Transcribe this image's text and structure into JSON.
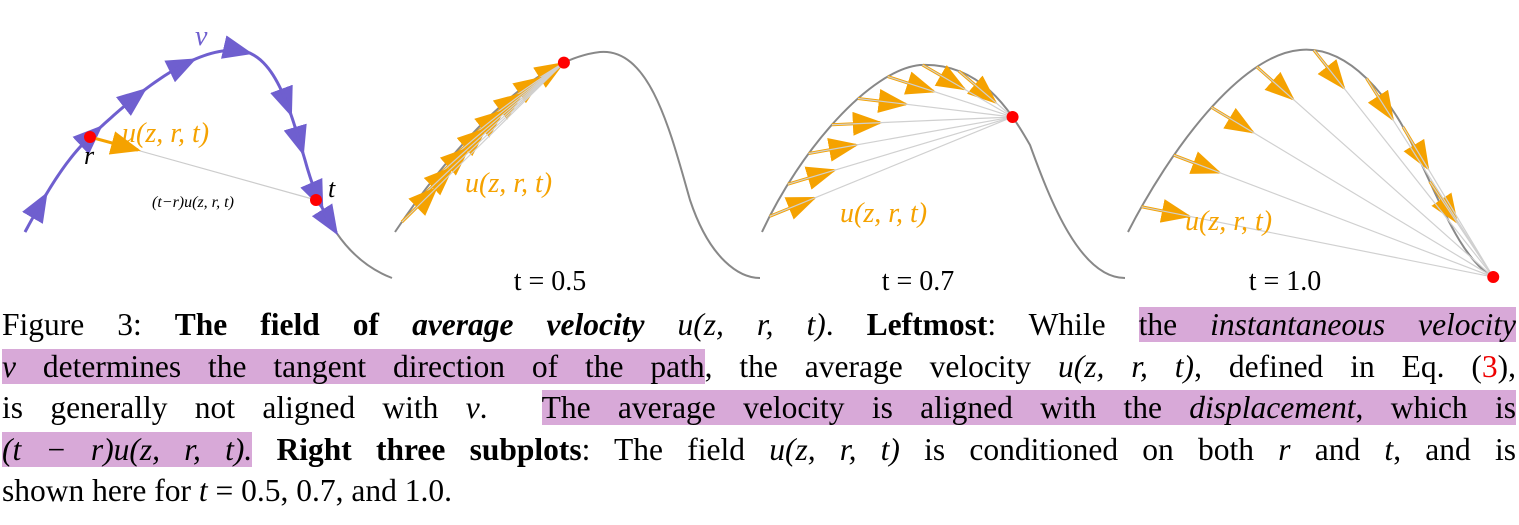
{
  "left_panel": {
    "velocity_label": "v",
    "field_label": "u(z, r, t)",
    "start_label": "r",
    "end_label": "t",
    "displacement_label": "(t−r)u(z, r, t)"
  },
  "subplots": [
    {
      "field_label": "u(z, r, t)",
      "title": "t = 0.5"
    },
    {
      "field_label": "u(z, r, t)",
      "title": "t = 0.7"
    },
    {
      "field_label": "u(z, r, t)",
      "title": "t = 1.0"
    }
  ],
  "caption": {
    "lines": [
      [
        {
          "text": "Figure 3: ",
          "style": ""
        },
        {
          "text": "The field of ",
          "style": "bold"
        },
        {
          "text": "average velocity",
          "style": "bold italic"
        },
        {
          "text": " ",
          "style": ""
        },
        {
          "text": "u(z, r, t)",
          "style": "italic"
        },
        {
          "text": ". ",
          "style": ""
        },
        {
          "text": "Leftmost",
          "style": "bold"
        },
        {
          "text": ": While ",
          "style": ""
        },
        {
          "text": "the ",
          "style": "highlight"
        },
        {
          "text": "instantaneous velocity",
          "style": "italic highlight"
        }
      ],
      [
        {
          "text": "v",
          "style": "italic highlight"
        },
        {
          "text": " determines the tangent direction of the path",
          "style": "highlight"
        },
        {
          "text": ", the average velocity ",
          "style": ""
        },
        {
          "text": "u(z, r, t)",
          "style": "italic"
        },
        {
          "text": ", defined in Eq. (",
          "style": ""
        },
        {
          "text": "3",
          "style": "link"
        },
        {
          "text": "),",
          "style": ""
        }
      ],
      [
        {
          "text": "is generally not aligned with ",
          "style": ""
        },
        {
          "text": "v",
          "style": "italic"
        },
        {
          "text": ".  ",
          "style": ""
        },
        {
          "text": "The average velocity is aligned with the ",
          "style": "highlight"
        },
        {
          "text": "displacement",
          "style": "italic highlight"
        },
        {
          "text": ", which is",
          "style": "highlight"
        }
      ],
      [
        {
          "text": "(t − r)u(z, r, t).",
          "style": "italic highlight"
        },
        {
          "text": " ",
          "style": ""
        },
        {
          "text": "Right three subplots",
          "style": "bold"
        },
        {
          "text": ": The field ",
          "style": ""
        },
        {
          "text": "u(z, r, t)",
          "style": "italic"
        },
        {
          "text": " is conditioned on both ",
          "style": ""
        },
        {
          "text": "r",
          "style": "italic"
        },
        {
          "text": " and ",
          "style": ""
        },
        {
          "text": "t",
          "style": "italic"
        },
        {
          "text": ", and is",
          "style": ""
        }
      ],
      [
        {
          "text": "shown here for ",
          "style": ""
        },
        {
          "text": "t",
          "style": "italic"
        },
        {
          "text": " = 0.5, 0.7, and 1.0.",
          "style": ""
        }
      ]
    ]
  }
}
